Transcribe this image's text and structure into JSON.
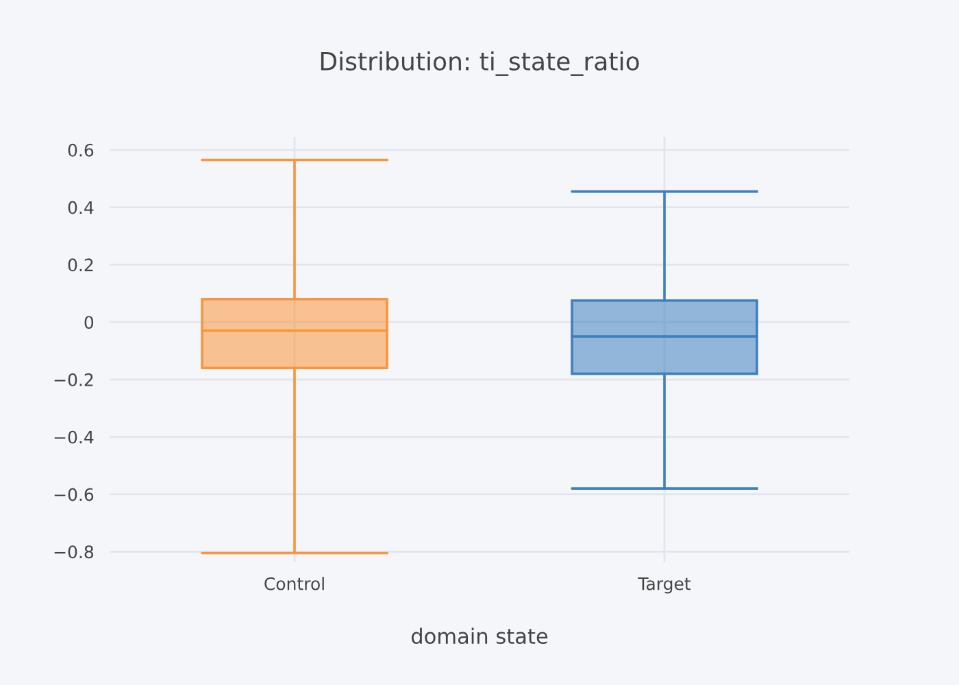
{
  "chart_data": {
    "type": "box",
    "title": "Distribution: ti_state_ratio",
    "xlabel": "domain state",
    "categories": [
      "Control",
      "Target"
    ],
    "colors": [
      "#f7963c",
      "#3f7fbf"
    ],
    "boxes": [
      {
        "low": -0.805,
        "q1": -0.16,
        "median": -0.03,
        "q3": 0.08,
        "high": 0.565
      },
      {
        "low": -0.58,
        "q1": -0.18,
        "median": -0.05,
        "q3": 0.075,
        "high": 0.455
      }
    ],
    "ylim": [
      -0.835,
      0.645
    ],
    "yticks": [
      {
        "value": -0.8,
        "label": "−0.8"
      },
      {
        "value": -0.6,
        "label": "−0.6"
      },
      {
        "value": -0.4,
        "label": "−0.4"
      },
      {
        "value": -0.2,
        "label": "−0.2"
      },
      0,
      0.2,
      0.4,
      0.6
    ],
    "grid": true,
    "legend": false
  }
}
